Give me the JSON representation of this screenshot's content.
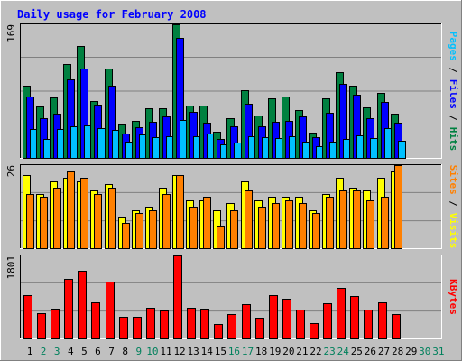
{
  "chart_data": [
    {
      "type": "bar",
      "title": "Daily usage for February 2008",
      "days": [
        "1",
        "2",
        "3",
        "4",
        "5",
        "6",
        "7",
        "8",
        "9",
        "10",
        "11",
        "12",
        "13",
        "14",
        "15",
        "16",
        "17",
        "18",
        "19",
        "20",
        "21",
        "22",
        "23",
        "24",
        "25",
        "26",
        "27",
        "28",
        "29",
        "30",
        "31"
      ],
      "weekend_days": [
        "2",
        "3",
        "9",
        "10",
        "16",
        "17",
        "23",
        "24",
        "30",
        "31"
      ],
      "ylabel": "Pages / Files / Hits",
      "ymax_label": "169",
      "ylim": [
        0,
        169
      ],
      "series": [
        {
          "name": "Hits",
          "color": "#008040",
          "values": [
            91,
            65,
            76,
            119,
            142,
            72,
            113,
            43,
            47,
            63,
            63,
            169,
            66,
            66,
            33,
            50,
            86,
            54,
            75,
            78,
            61,
            32,
            75,
            108,
            91,
            64,
            82,
            56
          ]
        },
        {
          "name": "Files",
          "color": "#0000ff",
          "values": [
            78,
            50,
            56,
            99,
            113,
            67,
            91,
            31,
            39,
            46,
            52,
            152,
            58,
            44,
            24,
            40,
            68,
            40,
            46,
            47,
            52,
            26,
            57,
            94,
            80,
            50,
            71,
            44
          ]
        },
        {
          "name": "Pages",
          "color": "#00c0ff",
          "values": [
            36,
            24,
            36,
            40,
            41,
            38,
            35,
            20,
            30,
            26,
            27,
            48,
            27,
            31,
            17,
            19,
            27,
            26,
            25,
            27,
            20,
            15,
            20,
            24,
            28,
            25,
            38,
            22
          ]
        }
      ]
    },
    {
      "type": "bar",
      "ylabel": "Sites / Visits",
      "ymax_label": "26",
      "ylim": [
        0,
        26
      ],
      "series": [
        {
          "name": "Visits",
          "color": "#ffff00",
          "values": [
            23,
            17,
            21,
            22,
            21,
            18,
            20,
            10,
            12,
            13,
            19,
            23,
            15,
            15,
            12,
            14,
            21,
            15,
            16,
            16,
            16,
            12,
            17,
            22,
            19,
            18,
            22,
            24
          ]
        },
        {
          "name": "Sites",
          "color": "#ff8000",
          "values": [
            17,
            16,
            19,
            24,
            22,
            17,
            19,
            8,
            11,
            12,
            17,
            23,
            13,
            16,
            7,
            12,
            18,
            13,
            14,
            15,
            14,
            11,
            16,
            18,
            18,
            15,
            16,
            26
          ]
        }
      ]
    },
    {
      "type": "bar",
      "ylabel": "KBytes",
      "ymax_label": "1801",
      "ylim": [
        0,
        1801
      ],
      "series": [
        {
          "name": "KBytes",
          "color": "#ff0000",
          "values": [
            935,
            550,
            639,
            1290,
            1463,
            781,
            1225,
            470,
            479,
            669,
            598,
            1801,
            656,
            640,
            318,
            533,
            753,
            452,
            931,
            859,
            619,
            342,
            766,
            1101,
            912,
            630,
            778,
            529
          ]
        }
      ]
    }
  ],
  "colors": {
    "background": "#c0c0c0",
    "plot_area": "#c0c0c0",
    "title": "#0000ff",
    "weekday_label": "#000000",
    "weekend_label": "#00805c",
    "bar_outline": "#000000"
  }
}
